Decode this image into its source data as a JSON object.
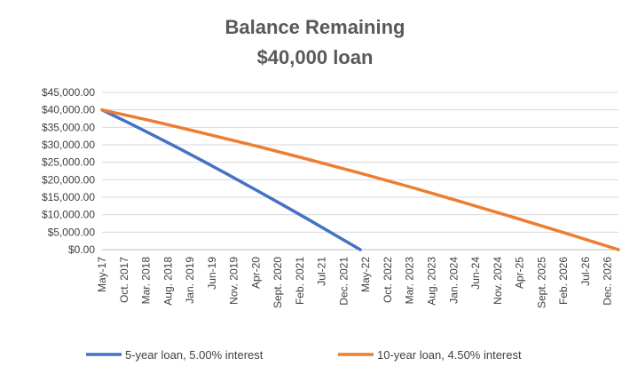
{
  "chart_data": {
    "type": "line",
    "title": "Balance Remaining",
    "subtitle": "$40,000 loan",
    "xlabel": "",
    "ylabel": "",
    "ylim": [
      0,
      45000
    ],
    "yticks": [
      "$0.00",
      "$5,000.00",
      "$10,000.00",
      "$15,000.00",
      "$20,000.00",
      "$25,000.00",
      "$30,000.00",
      "$35,000.00",
      "$40,000.00",
      "$45,000.00"
    ],
    "x_tick_labels": [
      "May-17",
      "Oct. 2017",
      "Mar. 2018",
      "Aug. 2018",
      "Jan. 2019",
      "Jun-19",
      "Nov. 2019",
      "Apr-20",
      "Sept. 2020",
      "Feb. 2021",
      "Jul-21",
      "Dec. 2021",
      "May-22",
      "Oct. 2022",
      "Mar. 2023",
      "Aug. 2023",
      "Jan. 2024",
      "Jun-24",
      "Nov. 2024",
      "Apr-25",
      "Sept. 2025",
      "Feb. 2026",
      "Jul-26",
      "Dec. 2026"
    ],
    "x_range_months": [
      0,
      120
    ],
    "grid": true,
    "legend_position": "bottom",
    "series": [
      {
        "name": "5-year loan, 5.00% interest",
        "color": "#4472C4",
        "x_months": [
          0,
          6,
          12,
          18,
          24,
          30,
          36,
          42,
          48,
          54,
          60
        ],
        "values": [
          40000,
          36400,
          32700,
          28900,
          25000,
          21000,
          16900,
          12800,
          8600,
          4300,
          0
        ]
      },
      {
        "name": "10-year loan, 4.50% interest",
        "color": "#ED7D31",
        "x_months": [
          0,
          12,
          24,
          36,
          48,
          60,
          72,
          84,
          96,
          108,
          120
        ],
        "values": [
          40000,
          36700,
          33200,
          29600,
          25800,
          21900,
          17800,
          13500,
          9100,
          4600,
          0
        ]
      }
    ]
  }
}
